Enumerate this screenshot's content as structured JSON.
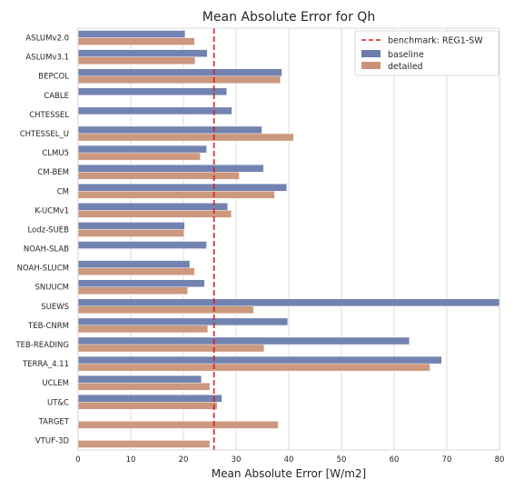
{
  "chart_data": {
    "type": "bar",
    "orientation": "horizontal",
    "title": "Mean Absolute Error for Qh",
    "xlabel": "Mean Absolute Error [W/m2]",
    "ylabel": "",
    "xlim": [
      0,
      80
    ],
    "xticks": [
      0,
      10,
      20,
      30,
      40,
      50,
      60,
      70,
      80
    ],
    "grid": "vertical",
    "legend_position": "top-right",
    "categories": [
      "ASLUMv2.0",
      "ASLUMv3.1",
      "BEPCOL",
      "CABLE",
      "CHTESSEL",
      "CHTESSEL_U",
      "CLMU5",
      "CM-BEM",
      "CM",
      "K-UCMv1",
      "Lodz-SUEB",
      "NOAH-SLAB",
      "NOAH-SLUCM",
      "SNUUCM",
      "SUEWS",
      "TEB-CNRM",
      "TEB-READING",
      "TERRA_4.11",
      "UCLEM",
      "UT&C",
      "TARGET",
      "VTUF-3D"
    ],
    "series": [
      {
        "name": "baseline",
        "color": "#6b7cad",
        "values": [
          20.3,
          24.5,
          38.7,
          28.2,
          29.2,
          34.9,
          24.4,
          35.2,
          39.6,
          28.4,
          20.2,
          24.4,
          21.2,
          24.0,
          80.0,
          39.8,
          62.9,
          69.0,
          23.4,
          27.3,
          null,
          null
        ]
      },
      {
        "name": "detailed",
        "color": "#c99277",
        "values": [
          22.1,
          22.2,
          38.4,
          null,
          null,
          40.9,
          23.2,
          30.6,
          37.3,
          29.1,
          20.1,
          null,
          22.1,
          20.8,
          33.3,
          24.6,
          35.3,
          66.8,
          25.0,
          26.4,
          38.0,
          25.0
        ]
      }
    ],
    "benchmark": {
      "name": "benchmark: REG1-SW",
      "value": 25.8,
      "color": "#d62020"
    }
  }
}
